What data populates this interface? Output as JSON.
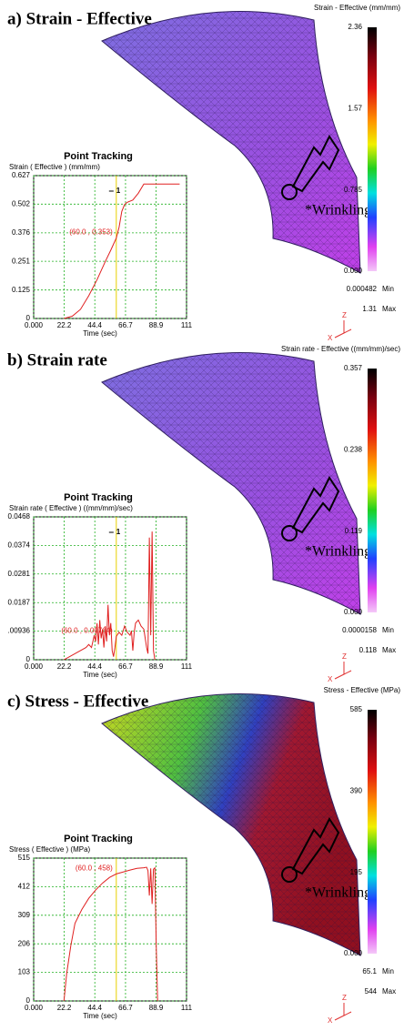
{
  "panels": [
    {
      "label": "a) Strain - Effective",
      "colorbar_title": "Strain - Effective (mm/mm)",
      "colorbar_ticks": [
        "2.36",
        "1.57",
        "0.785",
        "0.000"
      ],
      "min": "0.000482",
      "min_label": "Min",
      "max": "1.31",
      "max_label": "Max",
      "annotation": "*Wrinkling",
      "triad": [
        "Z",
        "X"
      ]
    },
    {
      "label": "b) Strain rate",
      "colorbar_title": "Strain rate - Effective ((mm/mm)/sec)",
      "colorbar_ticks": [
        "0.357",
        "0.238",
        "0.119",
        "0.000"
      ],
      "min": "0.0000158",
      "min_label": "Min",
      "max": "0.118",
      "max_label": "Max",
      "annotation": "*Wrinkling",
      "triad": [
        "Z",
        "X"
      ]
    },
    {
      "label": "c) Stress - Effective",
      "colorbar_title": "Stress - Effective (MPa)",
      "colorbar_ticks": [
        "585",
        "390",
        "195",
        "0.000"
      ],
      "min": "65.1",
      "min_label": "Min",
      "max": "544",
      "max_label": "Max",
      "annotation": "*Wrinkling",
      "triad": [
        "Z",
        "X"
      ]
    }
  ],
  "chart_data": [
    {
      "type": "line",
      "title": "Point Tracking",
      "y_label": "Strain ( Effective ) (mm/mm)",
      "x_label": "Time (sec)",
      "x": [
        22,
        28,
        34,
        40,
        46,
        52,
        56,
        60,
        62,
        64,
        66,
        68,
        72,
        76,
        80,
        90,
        100,
        106
      ],
      "values": [
        0,
        0.01,
        0.04,
        0.1,
        0.17,
        0.25,
        0.3,
        0.353,
        0.4,
        0.47,
        0.5,
        0.51,
        0.52,
        0.55,
        0.59,
        0.59,
        0.59,
        0.59
      ],
      "color": "#e02020",
      "grid": true,
      "grid_color": "#20b020",
      "cursor_x": 60,
      "cursor_color": "#e8d000",
      "annotation": "(60.0 , 0.353)",
      "marker_label": "1",
      "xlim": [
        0,
        111
      ],
      "xticks": [
        {
          "value": 0,
          "label": "0.000"
        },
        22.2,
        44.4,
        66.7,
        88.9,
        111
      ],
      "ylim": [
        0,
        0.627
      ],
      "yticks": [
        0,
        0.125,
        0.251,
        0.376,
        0.502,
        0.627
      ]
    },
    {
      "type": "line",
      "title": "Point Tracking",
      "y_label": "Strain rate ( Effective ) ((mm/mm)/sec)",
      "x_label": "Time (sec)",
      "x": [
        22,
        26,
        30,
        34,
        38,
        40,
        42,
        44,
        45,
        46,
        47,
        48,
        49,
        50,
        51,
        52,
        53,
        54,
        55,
        56,
        57,
        58,
        59,
        60,
        62,
        64,
        66,
        68,
        70,
        71,
        72,
        73,
        74,
        76,
        78,
        80,
        82,
        83,
        84,
        85,
        86,
        87,
        88
      ],
      "values": [
        0,
        0.001,
        0.002,
        0.003,
        0.004,
        0.005,
        0.004,
        0.008,
        0.006,
        0.012,
        0.005,
        0.013,
        0.007,
        0.01,
        0.004,
        0.011,
        0.006,
        0.018,
        0.008,
        0.012,
        0.003,
        0.001,
        0.004,
        0.00764,
        0.009,
        0.008,
        0.011,
        0.009,
        0.008,
        0.0095,
        0.003,
        0.009,
        0.012,
        0.013,
        0.011,
        0.01,
        0.004,
        0.002,
        0.04,
        0.008,
        0.042,
        0.003,
        0
      ],
      "color": "#e02020",
      "grid": true,
      "grid_color": "#20b020",
      "cursor_x": 60,
      "cursor_color": "#e8d000",
      "annotation": "(60.0 , 0.00764)",
      "marker_label": "1",
      "xlim": [
        0,
        111
      ],
      "xticks": [
        {
          "value": 0,
          "label": "0.000"
        },
        22.2,
        44.4,
        66.7,
        88.9,
        111
      ],
      "ylim": [
        0,
        0.0468
      ],
      "yticks": [
        0,
        {
          "value": 0.00936,
          "label": ".00936"
        },
        0.0187,
        0.0281,
        0.0374,
        0.0468
      ]
    },
    {
      "type": "line",
      "title": "Point Tracking",
      "y_label": "Stress ( Effective ) (MPa)",
      "x_label": "Time (sec)",
      "x": [
        22,
        24,
        27,
        30,
        35,
        40,
        45,
        50,
        55,
        60,
        65,
        70,
        75,
        80,
        82,
        83,
        84,
        85,
        86,
        87,
        88,
        89,
        90
      ],
      "values": [
        0,
        100,
        200,
        280,
        330,
        370,
        400,
        425,
        445,
        458,
        465,
        472,
        478,
        480,
        482,
        470,
        380,
        478,
        350,
        475,
        480,
        200,
        0
      ],
      "color": "#e02020",
      "grid": true,
      "grid_color": "#20b020",
      "cursor_x": 60,
      "cursor_color": "#e8d000",
      "annotation": "(60.0 , 458)",
      "xlim": [
        0,
        111
      ],
      "xticks": [
        {
          "value": 0,
          "label": "0.000"
        },
        22.2,
        44.4,
        66.7,
        88.9,
        111
      ],
      "ylim": [
        0,
        515
      ],
      "yticks": [
        0,
        103,
        206,
        309,
        412,
        515
      ]
    }
  ]
}
